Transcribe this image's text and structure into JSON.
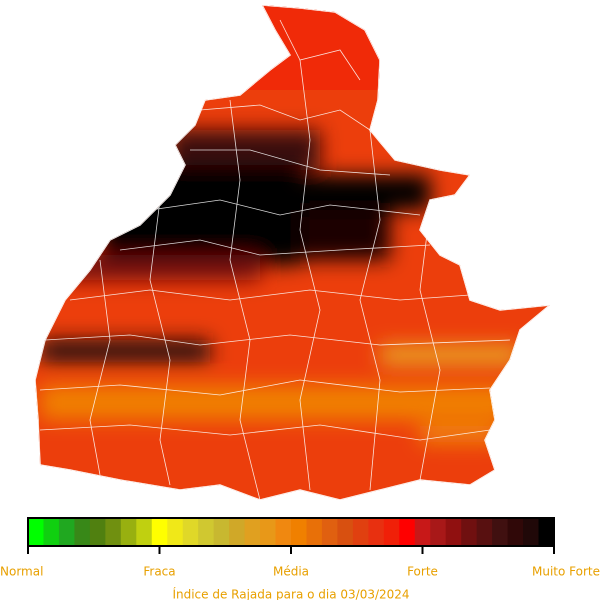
{
  "legend": {
    "labels": [
      "Normal",
      "Fraca",
      "Média",
      "Forte",
      "Muito Forte"
    ],
    "colors": [
      "#00ff00",
      "#10d010",
      "#20a820",
      "#388818",
      "#508010",
      "#709010",
      "#98b010",
      "#c0d010",
      "#ffff00",
      "#f0e818",
      "#e0d828",
      "#d0c830",
      "#c8b830",
      "#d0a828",
      "#e0a020",
      "#e89818",
      "#f08810",
      "#f08000",
      "#e87008",
      "#e06010",
      "#d85010",
      "#e04010",
      "#e83010",
      "#f02008",
      "#ff0000",
      "#c81818",
      "#a81818",
      "#901010",
      "#701010",
      "#581010",
      "#401010",
      "#300808",
      "#200808",
      "#000000"
    ]
  },
  "caption": "Índice de Rajada para o dia 03/03/2024"
}
